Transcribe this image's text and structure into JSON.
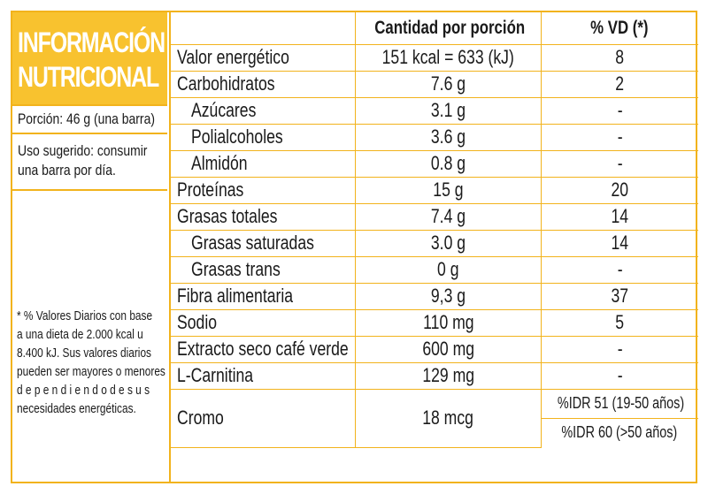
{
  "title": {
    "line1": "INFORMACIÓN",
    "line2": "NUTRICIONAL"
  },
  "portion": "Porción: 46 g (una barra)",
  "usage": {
    "line1": "Uso sugerido: consumir",
    "line2": "una barra por día."
  },
  "note": [
    "* % Valores Diarios con base",
    "a una dieta de 2.000 kcal u",
    "8.400 kJ. Sus valores diarios",
    "pueden ser mayores o menores",
    "d e p e n d i e n d o  d e  s u s",
    "necesidades energéticas."
  ],
  "headers": {
    "amount": "Cantidad por porción",
    "dv": "% VD (*)"
  },
  "rows": [
    {
      "name": "Valor energético",
      "amount": "151 kcal = 633 (kJ)",
      "dv": "8"
    },
    {
      "name": "Carbohidratos",
      "amount": "7.6 g",
      "dv": "2"
    },
    {
      "name": "Azúcares",
      "amount": "3.1 g",
      "dv": "-"
    },
    {
      "name": "Polialcoholes",
      "amount": "3.6 g",
      "dv": "-"
    },
    {
      "name": "Almidón",
      "amount": "0.8 g",
      "dv": "-"
    },
    {
      "name": "Proteínas",
      "amount": "15 g",
      "dv": "20"
    },
    {
      "name": "Grasas totales",
      "amount": "7.4 g",
      "dv": "14"
    },
    {
      "name": "Grasas saturadas",
      "amount": "3.0 g",
      "dv": "14"
    },
    {
      "name": "Grasas trans",
      "amount": "0 g",
      "dv": "-"
    },
    {
      "name": "Fibra alimentaria",
      "amount": "9,3 g",
      "dv": "37"
    },
    {
      "name": "Sodio",
      "amount": "110 mg",
      "dv": "5"
    },
    {
      "name": "Extracto seco café verde",
      "amount": "600 mg",
      "dv": "-"
    },
    {
      "name": "L-Carnitina",
      "amount": "129 mg",
      "dv": "-"
    }
  ],
  "chrome": {
    "name": "Cromo",
    "amount": "18 mcg",
    "idr1": "%IDR 51 (19-50 años)",
    "idr2": "%IDR 60 (>50 años)"
  }
}
